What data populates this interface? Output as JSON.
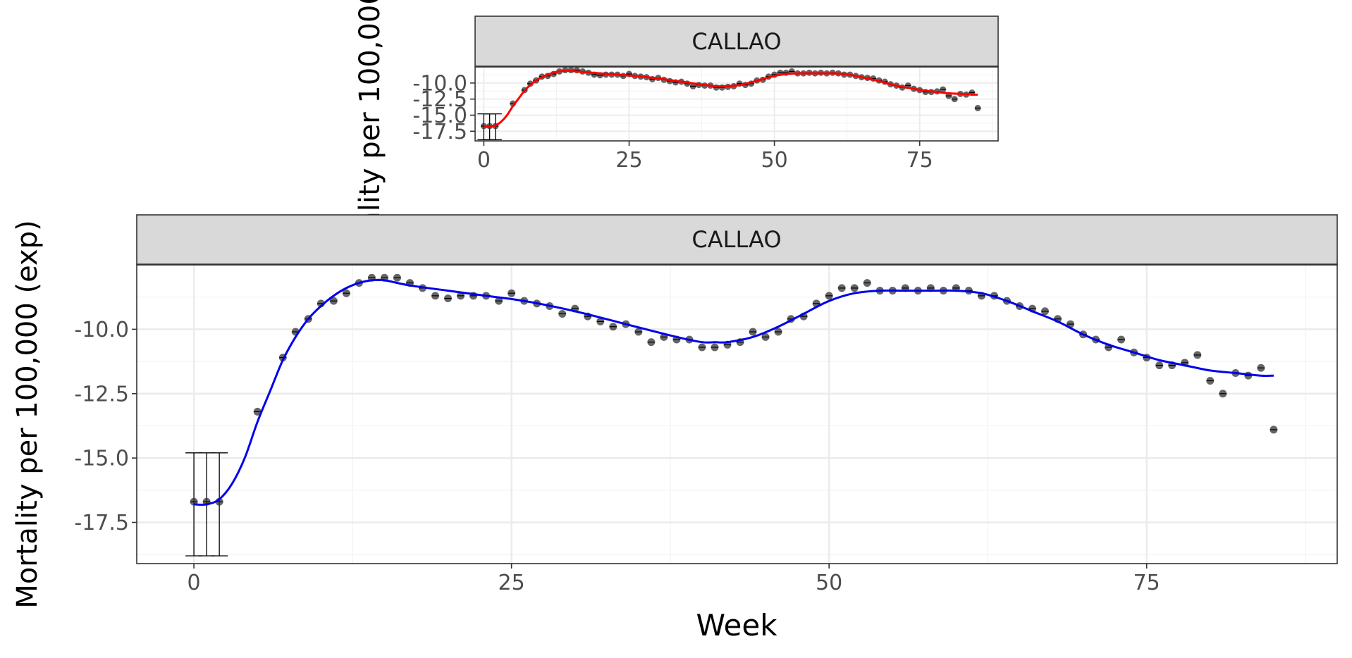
{
  "chart_data": [
    {
      "type": "scatter",
      "panel": "inset",
      "facet_label": "CALLAO",
      "ylabel": "Mortality per 100,000 (exp)",
      "xlim": [
        -1.5,
        88.5
      ],
      "ylim": [
        -19.0,
        -7.5
      ],
      "x_ticks": [
        0,
        25,
        50,
        75
      ],
      "y_ticks": [
        -10.0,
        -12.5,
        -15.0,
        -17.5
      ],
      "x_tick_labels": [
        "0",
        "25",
        "50",
        "75"
      ],
      "y_tick_labels": [
        "-10.0",
        "-12.5",
        "-15.0",
        "-17.5"
      ],
      "grid": true,
      "colors": {
        "fit": "#ff0000",
        "points": "#333333",
        "strip": "#d9d9d9"
      },
      "fit_color_name": "red"
    },
    {
      "type": "scatter",
      "panel": "main",
      "facet_label": "CALLAO",
      "xlabel": "Week",
      "ylabel": "Mortality per 100,000 (exp)",
      "xlim": [
        -4.5,
        90
      ],
      "ylim": [
        -19.1,
        -7.5
      ],
      "x_ticks": [
        0,
        25,
        50,
        75
      ],
      "y_ticks": [
        -10.0,
        -12.5,
        -15.0,
        -17.5
      ],
      "x_tick_labels": [
        "0",
        "25",
        "50",
        "75"
      ],
      "y_tick_labels": [
        "-10.0",
        "-12.5",
        "-15.0",
        "-17.5"
      ],
      "grid": true,
      "colors": {
        "fit": "#0000ee",
        "points": "#333333",
        "strip": "#d9d9d9"
      },
      "fit_color_name": "blue"
    }
  ],
  "series": {
    "observed": {
      "x": [
        0,
        1,
        2,
        5,
        7,
        8,
        9,
        10,
        11,
        12,
        13,
        14,
        15,
        16,
        17,
        18,
        19,
        20,
        21,
        22,
        23,
        24,
        25,
        26,
        27,
        28,
        29,
        30,
        31,
        32,
        33,
        34,
        35,
        36,
        37,
        38,
        39,
        40,
        41,
        42,
        43,
        44,
        45,
        46,
        47,
        48,
        49,
        50,
        51,
        52,
        53,
        54,
        55,
        56,
        57,
        58,
        59,
        60,
        61,
        62,
        63,
        64,
        65,
        66,
        67,
        68,
        69,
        70,
        71,
        72,
        73,
        74,
        75,
        76,
        77,
        78,
        79,
        80,
        81,
        82,
        83,
        84,
        85
      ],
      "y": [
        -16.7,
        -16.7,
        -16.7,
        -13.2,
        -11.1,
        -10.1,
        -9.6,
        -9.0,
        -8.9,
        -8.6,
        -8.2,
        -8.0,
        -8.0,
        -8.0,
        -8.2,
        -8.4,
        -8.7,
        -8.8,
        -8.7,
        -8.7,
        -8.7,
        -8.9,
        -8.6,
        -8.9,
        -9.0,
        -9.1,
        -9.4,
        -9.2,
        -9.5,
        -9.7,
        -9.9,
        -9.8,
        -10.1,
        -10.5,
        -10.3,
        -10.4,
        -10.4,
        -10.7,
        -10.7,
        -10.6,
        -10.5,
        -10.1,
        -10.3,
        -10.1,
        -9.6,
        -9.5,
        -9.0,
        -8.7,
        -8.4,
        -8.4,
        -8.2,
        -8.5,
        -8.5,
        -8.4,
        -8.5,
        -8.4,
        -8.5,
        -8.4,
        -8.5,
        -8.7,
        -8.7,
        -8.9,
        -9.1,
        -9.2,
        -9.3,
        -9.6,
        -9.8,
        -10.2,
        -10.4,
        -10.7,
        -10.4,
        -10.9,
        -11.1,
        -11.4,
        -11.4,
        -11.3,
        -11.0,
        -12.0,
        -12.5,
        -11.7,
        -11.8,
        -11.5,
        -13.9
      ]
    },
    "error_bars": [
      {
        "x": 0,
        "low": -18.8,
        "high": -14.8
      },
      {
        "x": 1,
        "low": -18.8,
        "high": -14.8
      },
      {
        "x": 2,
        "low": -18.8,
        "high": -14.8
      }
    ],
    "fit_knots": {
      "x": [
        0,
        1,
        2,
        3,
        4,
        5,
        6,
        7,
        8,
        9,
        10,
        11,
        12,
        13,
        14,
        15,
        17,
        20,
        23,
        26,
        30,
        34,
        38,
        40,
        41,
        42,
        44,
        46,
        48,
        50,
        52,
        54,
        56,
        58,
        60,
        62,
        64,
        66,
        68,
        70,
        72,
        74,
        76,
        78,
        80,
        82,
        84,
        85
      ],
      "y": [
        -16.8,
        -16.8,
        -16.6,
        -16.0,
        -15.0,
        -13.6,
        -12.4,
        -11.2,
        -10.3,
        -9.6,
        -9.1,
        -8.7,
        -8.4,
        -8.2,
        -8.1,
        -8.1,
        -8.3,
        -8.5,
        -8.7,
        -8.9,
        -9.3,
        -9.8,
        -10.3,
        -10.5,
        -10.5,
        -10.5,
        -10.3,
        -9.9,
        -9.4,
        -8.9,
        -8.6,
        -8.5,
        -8.5,
        -8.5,
        -8.5,
        -8.6,
        -8.9,
        -9.3,
        -9.7,
        -10.2,
        -10.6,
        -10.9,
        -11.2,
        -11.4,
        -11.6,
        -11.7,
        -11.8,
        -11.8
      ]
    }
  }
}
